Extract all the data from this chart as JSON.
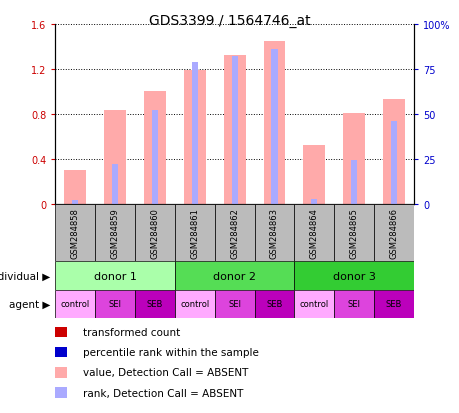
{
  "title": "GDS3399 / 1564746_at",
  "samples": [
    "GSM284858",
    "GSM284859",
    "GSM284860",
    "GSM284861",
    "GSM284862",
    "GSM284863",
    "GSM284864",
    "GSM284865",
    "GSM284866"
  ],
  "bar_values": [
    0.3,
    0.83,
    1.0,
    1.19,
    1.32,
    1.45,
    0.52,
    0.81,
    0.93
  ],
  "rank_values_pct": [
    2.0,
    22.0,
    52.0,
    79.0,
    82.0,
    86.0,
    2.5,
    24.0,
    46.0
  ],
  "bar_color_absent": "#ffaaaa",
  "rank_color_absent": "#aaaaff",
  "ylim_left": [
    0,
    1.6
  ],
  "ylim_right": [
    0,
    100
  ],
  "yticks_left": [
    0.0,
    0.4,
    0.8,
    1.2,
    1.6
  ],
  "yticks_right": [
    0,
    25,
    50,
    75,
    100
  ],
  "ytick_labels_left": [
    "0",
    "0.4",
    "0.8",
    "1.2",
    "1.6"
  ],
  "ytick_labels_right": [
    "0",
    "25",
    "50",
    "75",
    "100%"
  ],
  "donors": [
    {
      "label": "donor 1",
      "start": 0,
      "end": 3,
      "color": "#aaffaa"
    },
    {
      "label": "donor 2",
      "start": 3,
      "end": 6,
      "color": "#55dd55"
    },
    {
      "label": "donor 3",
      "start": 6,
      "end": 9,
      "color": "#33cc33"
    }
  ],
  "agents": [
    "control",
    "SEI",
    "SEB",
    "control",
    "SEI",
    "SEB",
    "control",
    "SEI",
    "SEB"
  ],
  "agent_colors": [
    "#ffaaff",
    "#dd44dd",
    "#bb00bb",
    "#ffaaff",
    "#dd44dd",
    "#bb00bb",
    "#ffaaff",
    "#dd44dd",
    "#bb00bb"
  ],
  "legend_items": [
    {
      "color": "#cc0000",
      "label": "transformed count"
    },
    {
      "color": "#0000cc",
      "label": "percentile rank within the sample"
    },
    {
      "color": "#ffaaaa",
      "label": "value, Detection Call = ABSENT"
    },
    {
      "color": "#aaaaff",
      "label": "rank, Detection Call = ABSENT"
    }
  ],
  "label_color_left": "#cc0000",
  "label_color_right": "#0000cc",
  "sample_box_color": "#bbbbbb",
  "individual_label": "individual",
  "agent_label": "agent"
}
